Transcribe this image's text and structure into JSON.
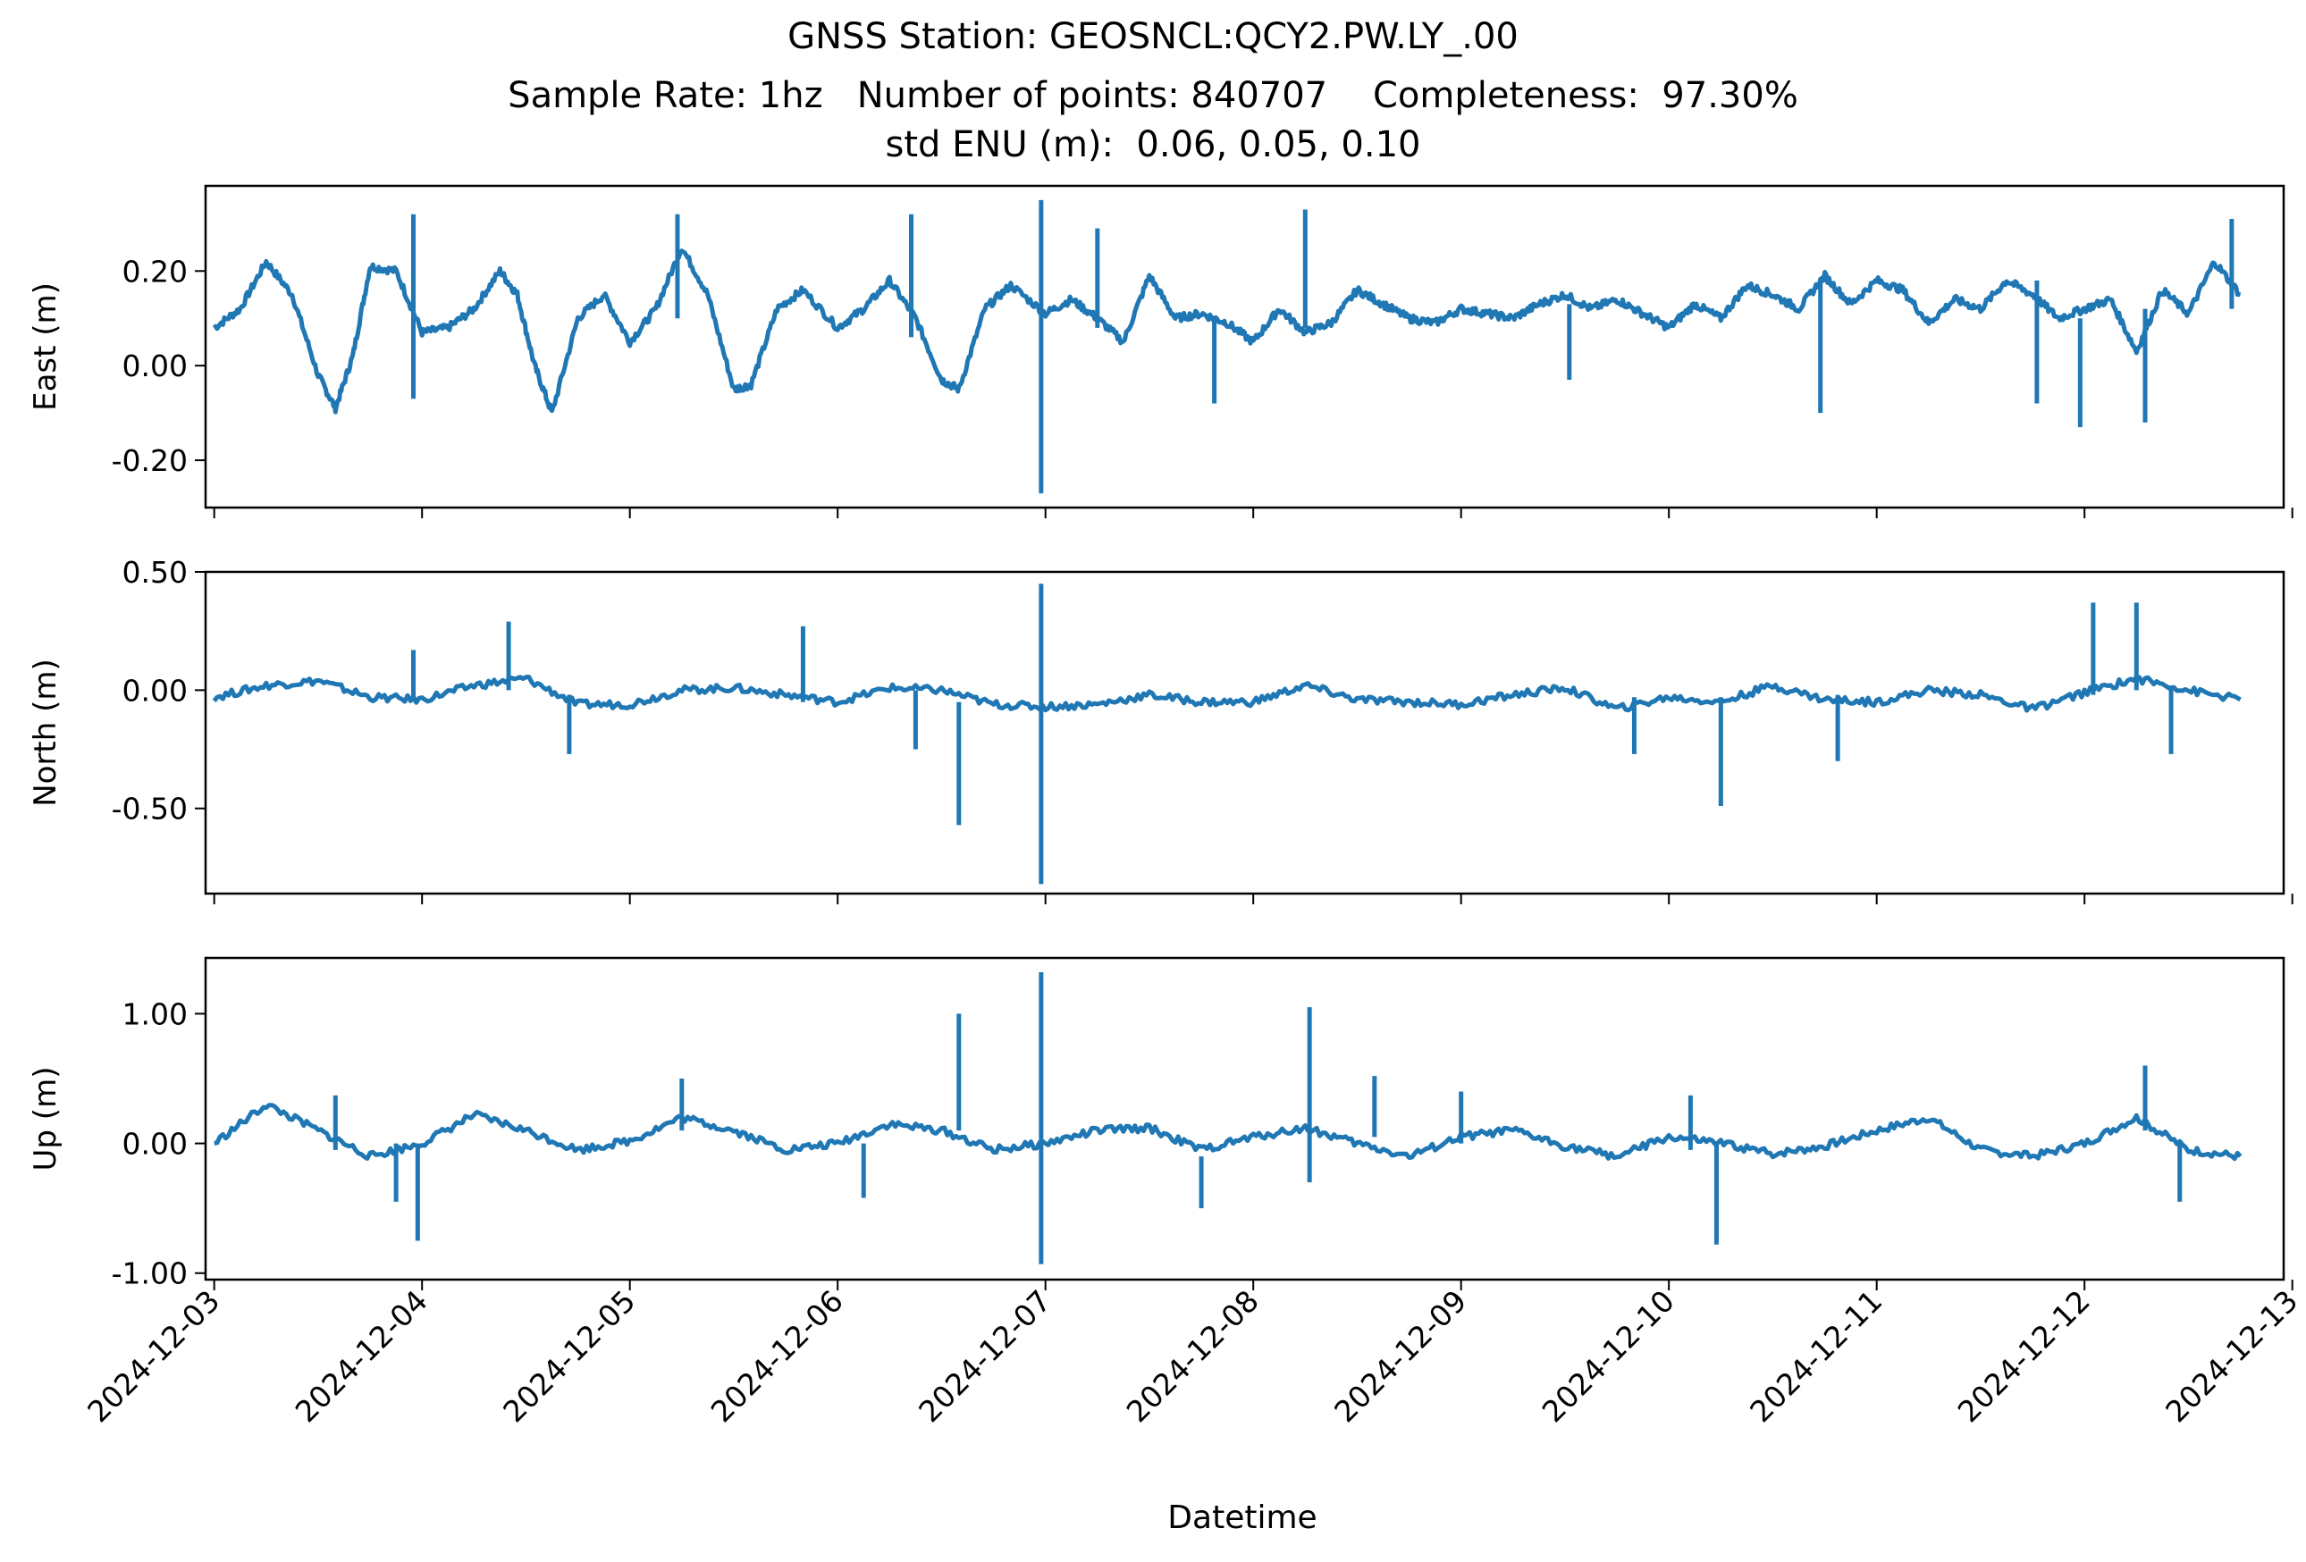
{
  "figure": {
    "title_lines": [
      "GNSS Station: GEOSNCL:QCY2.PW.LY_.00",
      "Sample Rate: 1hz   Number of points: 840707    Completeness:  97.30%",
      "std ENU (m):  0.06, 0.05, 0.10"
    ],
    "xlabel": "Datetime",
    "line_color": "#1f77b4"
  },
  "chart_data": [
    {
      "type": "line",
      "ylabel": "East (m)",
      "xlim": [
        "2024-12-02T23:00",
        "2024-12-12T23:00"
      ],
      "ylim": [
        -0.3,
        0.38
      ],
      "yticks": [
        0.2,
        0.0,
        -0.2
      ],
      "ytick_labels": [
        "0.20",
        "0.00",
        "-0.20"
      ],
      "series": [
        {
          "x": [
            "2024-12-03T00:00",
            "2024-12-03T03:00",
            "2024-12-03T06:00",
            "2024-12-03T09:00",
            "2024-12-03T12:00",
            "2024-12-03T14:00",
            "2024-12-03T16:00",
            "2024-12-03T18:00",
            "2024-12-03T21:00",
            "2024-12-04T00:00",
            "2024-12-04T03:00",
            "2024-12-04T06:00",
            "2024-12-04T09:00",
            "2024-12-04T11:00",
            "2024-12-04T13:00",
            "2024-12-04T15:00",
            "2024-12-04T18:00",
            "2024-12-04T21:00",
            "2024-12-05T00:00",
            "2024-12-05T03:00",
            "2024-12-05T06:00",
            "2024-12-05T09:00",
            "2024-12-05T12:00",
            "2024-12-05T14:00",
            "2024-12-05T17:00",
            "2024-12-05T20:00",
            "2024-12-06T00:00",
            "2024-12-06T03:00",
            "2024-12-06T06:00",
            "2024-12-06T09:00",
            "2024-12-06T12:00",
            "2024-12-06T14:00",
            "2024-12-06T17:00",
            "2024-12-06T20:00",
            "2024-12-07T00:00",
            "2024-12-07T03:00",
            "2024-12-07T06:00",
            "2024-12-07T09:00",
            "2024-12-07T12:00",
            "2024-12-07T15:00",
            "2024-12-07T18:00",
            "2024-12-07T21:00",
            "2024-12-08T00:00",
            "2024-12-08T03:00",
            "2024-12-08T06:00",
            "2024-12-08T09:00",
            "2024-12-08T12:00",
            "2024-12-08T15:00",
            "2024-12-08T18:00",
            "2024-12-08T21:00",
            "2024-12-09T00:00",
            "2024-12-09T03:00",
            "2024-12-09T06:00",
            "2024-12-09T09:00",
            "2024-12-09T12:00",
            "2024-12-09T15:00",
            "2024-12-09T18:00",
            "2024-12-09T21:00",
            "2024-12-10T00:00",
            "2024-12-10T03:00",
            "2024-12-10T06:00",
            "2024-12-10T09:00",
            "2024-12-10T12:00",
            "2024-12-10T15:00",
            "2024-12-10T18:00",
            "2024-12-10T21:00",
            "2024-12-11T00:00",
            "2024-12-11T03:00",
            "2024-12-11T06:00",
            "2024-12-11T09:00",
            "2024-12-11T12:00",
            "2024-12-11T15:00",
            "2024-12-11T18:00",
            "2024-12-11T21:00",
            "2024-12-12T00:00",
            "2024-12-12T03:00",
            "2024-12-12T06:00",
            "2024-12-12T09:00",
            "2024-12-12T12:00",
            "2024-12-12T15:00",
            "2024-12-12T18:00"
          ],
          "y": [
            0.08,
            0.12,
            0.22,
            0.15,
            -0.02,
            -0.09,
            0.02,
            0.21,
            0.2,
            0.07,
            0.08,
            0.12,
            0.2,
            0.15,
            0.0,
            -0.1,
            0.1,
            0.15,
            0.05,
            0.12,
            0.25,
            0.15,
            -0.05,
            -0.04,
            0.12,
            0.16,
            0.08,
            0.12,
            0.18,
            0.1,
            -0.03,
            -0.05,
            0.12,
            0.17,
            0.11,
            0.14,
            0.1,
            0.05,
            0.19,
            0.1,
            0.11,
            0.09,
            0.05,
            0.12,
            0.07,
            0.09,
            0.16,
            0.13,
            0.1,
            0.09,
            0.12,
            0.11,
            0.1,
            0.13,
            0.15,
            0.12,
            0.14,
            0.11,
            0.08,
            0.13,
            0.1,
            0.17,
            0.15,
            0.12,
            0.19,
            0.13,
            0.18,
            0.16,
            0.09,
            0.14,
            0.12,
            0.18,
            0.15,
            0.1,
            0.12,
            0.14,
            0.03,
            0.16,
            0.11,
            0.22,
            0.15
          ]
        }
      ],
      "spikes": [
        {
          "x": "2024-12-03T23:00",
          "y_from": -0.07,
          "y_to": 0.32
        },
        {
          "x": "2024-12-05T05:30",
          "y_from": 0.1,
          "y_to": 0.32
        },
        {
          "x": "2024-12-06T08:30",
          "y_from": 0.06,
          "y_to": 0.32
        },
        {
          "x": "2024-12-06T23:30",
          "y_from": -0.27,
          "y_to": 0.35
        },
        {
          "x": "2024-12-08T06:00",
          "y_from": 0.08,
          "y_to": 0.33
        },
        {
          "x": "2024-12-07T06:00",
          "y_from": 0.08,
          "y_to": 0.29
        },
        {
          "x": "2024-12-07T19:30",
          "y_from": -0.08,
          "y_to": 0.1
        },
        {
          "x": "2024-12-09T12:30",
          "y_from": -0.03,
          "y_to": 0.13
        },
        {
          "x": "2024-12-10T17:30",
          "y_from": -0.1,
          "y_to": 0.18
        },
        {
          "x": "2024-12-11T18:30",
          "y_from": -0.08,
          "y_to": 0.18
        },
        {
          "x": "2024-12-11T23:30",
          "y_from": -0.13,
          "y_to": 0.1
        },
        {
          "x": "2024-12-12T07:00",
          "y_from": -0.12,
          "y_to": 0.12
        },
        {
          "x": "2024-12-12T17:00",
          "y_from": 0.12,
          "y_to": 0.31
        }
      ]
    },
    {
      "type": "line",
      "ylabel": "North (m)",
      "xlim": [
        "2024-12-02T23:00",
        "2024-12-12T23:00"
      ],
      "ylim": [
        -0.86,
        0.5
      ],
      "yticks": [
        0.5,
        0.0,
        -0.5
      ],
      "ytick_labels": [
        "0.50",
        "0.00",
        "-0.50"
      ],
      "series": [
        {
          "x": [
            "2024-12-03T00:00",
            "2024-12-03T06:00",
            "2024-12-03T12:00",
            "2024-12-03T18:00",
            "2024-12-04T00:00",
            "2024-12-04T06:00",
            "2024-12-04T12:00",
            "2024-12-04T18:00",
            "2024-12-05T00:00",
            "2024-12-05T06:00",
            "2024-12-05T12:00",
            "2024-12-05T18:00",
            "2024-12-06T00:00",
            "2024-12-06T06:00",
            "2024-12-06T12:00",
            "2024-12-06T18:00",
            "2024-12-07T00:00",
            "2024-12-07T06:00",
            "2024-12-07T12:00",
            "2024-12-07T18:00",
            "2024-12-08T00:00",
            "2024-12-08T06:00",
            "2024-12-08T12:00",
            "2024-12-08T18:00",
            "2024-12-09T00:00",
            "2024-12-09T06:00",
            "2024-12-09T12:00",
            "2024-12-09T18:00",
            "2024-12-10T00:00",
            "2024-12-10T06:00",
            "2024-12-10T12:00",
            "2024-12-10T18:00",
            "2024-12-11T00:00",
            "2024-12-11T06:00",
            "2024-12-11T12:00",
            "2024-12-11T18:00",
            "2024-12-12T00:00",
            "2024-12-12T06:00",
            "2024-12-12T12:00",
            "2024-12-12T18:00"
          ],
          "y": [
            -0.03,
            0.02,
            0.04,
            -0.03,
            -0.04,
            0.02,
            0.05,
            -0.06,
            -0.06,
            0.0,
            0.01,
            -0.02,
            -0.05,
            0.01,
            0.0,
            -0.06,
            -0.07,
            -0.06,
            -0.02,
            -0.05,
            -0.05,
            0.02,
            -0.04,
            -0.05,
            -0.06,
            -0.02,
            0.01,
            -0.08,
            -0.03,
            -0.05,
            0.02,
            -0.04,
            -0.05,
            0.0,
            -0.02,
            -0.08,
            -0.01,
            0.05,
            0.0,
            -0.04
          ]
        }
      ],
      "spikes": [
        {
          "x": "2024-12-03T23:00",
          "y_from": -0.05,
          "y_to": 0.17
        },
        {
          "x": "2024-12-04T10:00",
          "y_from": 0.0,
          "y_to": 0.29
        },
        {
          "x": "2024-12-04T17:00",
          "y_from": -0.27,
          "y_to": -0.02
        },
        {
          "x": "2024-12-05T20:00",
          "y_from": -0.05,
          "y_to": 0.27
        },
        {
          "x": "2024-12-06T09:00",
          "y_from": -0.25,
          "y_to": 0.0
        },
        {
          "x": "2024-12-06T14:00",
          "y_from": -0.57,
          "y_to": -0.05
        },
        {
          "x": "2024-12-06T23:30",
          "y_from": -0.82,
          "y_to": 0.45
        },
        {
          "x": "2024-12-09T20:00",
          "y_from": -0.27,
          "y_to": -0.03
        },
        {
          "x": "2024-12-10T06:00",
          "y_from": -0.49,
          "y_to": -0.03
        },
        {
          "x": "2024-12-10T19:30",
          "y_from": -0.3,
          "y_to": -0.02
        },
        {
          "x": "2024-12-12T01:00",
          "y_from": -0.02,
          "y_to": 0.37
        },
        {
          "x": "2024-12-12T06:00",
          "y_from": 0.0,
          "y_to": 0.37
        },
        {
          "x": "2024-12-12T10:00",
          "y_from": -0.27,
          "y_to": 0.02
        }
      ]
    },
    {
      "type": "line",
      "ylabel": "Up (m)",
      "xlim": [
        "2024-12-02T23:00",
        "2024-12-12T23:00"
      ],
      "ylim": [
        -1.05,
        1.43
      ],
      "yticks": [
        1.0,
        0.0,
        -1.0
      ],
      "ytick_labels": [
        "1.00",
        "0.00",
        "-1.00"
      ],
      "series": [
        {
          "x": [
            "2024-12-03T00:00",
            "2024-12-03T06:00",
            "2024-12-03T12:00",
            "2024-12-03T18:00",
            "2024-12-04T00:00",
            "2024-12-04T06:00",
            "2024-12-04T12:00",
            "2024-12-04T18:00",
            "2024-12-05T00:00",
            "2024-12-05T06:00",
            "2024-12-05T12:00",
            "2024-12-05T18:00",
            "2024-12-06T00:00",
            "2024-12-06T06:00",
            "2024-12-06T12:00",
            "2024-12-06T18:00",
            "2024-12-07T00:00",
            "2024-12-07T06:00",
            "2024-12-07T12:00",
            "2024-12-07T18:00",
            "2024-12-08T00:00",
            "2024-12-08T06:00",
            "2024-12-08T12:00",
            "2024-12-08T18:00",
            "2024-12-09T00:00",
            "2024-12-09T06:00",
            "2024-12-09T12:00",
            "2024-12-09T18:00",
            "2024-12-10T00:00",
            "2024-12-10T06:00",
            "2024-12-10T12:00",
            "2024-12-10T18:00",
            "2024-12-11T00:00",
            "2024-12-11T06:00",
            "2024-12-11T12:00",
            "2024-12-11T18:00",
            "2024-12-12T00:00",
            "2024-12-12T06:00",
            "2024-12-12T12:00",
            "2024-12-12T18:00"
          ],
          "y": [
            0.0,
            0.3,
            0.1,
            -0.1,
            0.0,
            0.22,
            0.1,
            -0.05,
            0.02,
            0.2,
            0.1,
            -0.05,
            0.0,
            0.15,
            0.1,
            -0.05,
            0.0,
            0.1,
            0.12,
            -0.05,
            0.05,
            0.12,
            0.0,
            -0.1,
            0.05,
            0.1,
            -0.02,
            -0.1,
            0.05,
            0.0,
            -0.08,
            -0.02,
            0.1,
            0.2,
            -0.05,
            -0.1,
            0.0,
            0.2,
            -0.05,
            -0.1
          ]
        }
      ],
      "spikes": [
        {
          "x": "2024-12-03T14:00",
          "y_from": -0.05,
          "y_to": 0.37
        },
        {
          "x": "2024-12-03T21:00",
          "y_from": -0.45,
          "y_to": 0.0
        },
        {
          "x": "2024-12-03T23:30",
          "y_from": -0.75,
          "y_to": 0.0
        },
        {
          "x": "2024-12-05T06:00",
          "y_from": 0.1,
          "y_to": 0.5
        },
        {
          "x": "2024-12-06T03:00",
          "y_from": -0.42,
          "y_to": 0.0
        },
        {
          "x": "2024-12-06T14:00",
          "y_from": 0.1,
          "y_to": 1.0
        },
        {
          "x": "2024-12-06T23:30",
          "y_from": -0.93,
          "y_to": 1.32
        },
        {
          "x": "2024-12-07T18:00",
          "y_from": -0.5,
          "y_to": -0.1
        },
        {
          "x": "2024-12-08T06:30",
          "y_from": -0.3,
          "y_to": 1.05
        },
        {
          "x": "2024-12-08T14:00",
          "y_from": 0.05,
          "y_to": 0.52
        },
        {
          "x": "2024-12-09T00:00",
          "y_from": 0.0,
          "y_to": 0.4
        },
        {
          "x": "2024-12-10T02:30",
          "y_from": -0.05,
          "y_to": 0.37
        },
        {
          "x": "2024-12-10T05:30",
          "y_from": -0.78,
          "y_to": 0.0
        },
        {
          "x": "2024-12-12T07:00",
          "y_from": 0.1,
          "y_to": 0.6
        },
        {
          "x": "2024-12-12T11:00",
          "y_from": -0.45,
          "y_to": 0.0
        }
      ]
    }
  ],
  "x_axis": {
    "ticks": [
      "2024-12-03",
      "2024-12-04",
      "2024-12-05",
      "2024-12-06",
      "2024-12-07",
      "2024-12-08",
      "2024-12-09",
      "2024-12-10",
      "2024-12-11",
      "2024-12-12",
      "2024-12-13"
    ]
  }
}
